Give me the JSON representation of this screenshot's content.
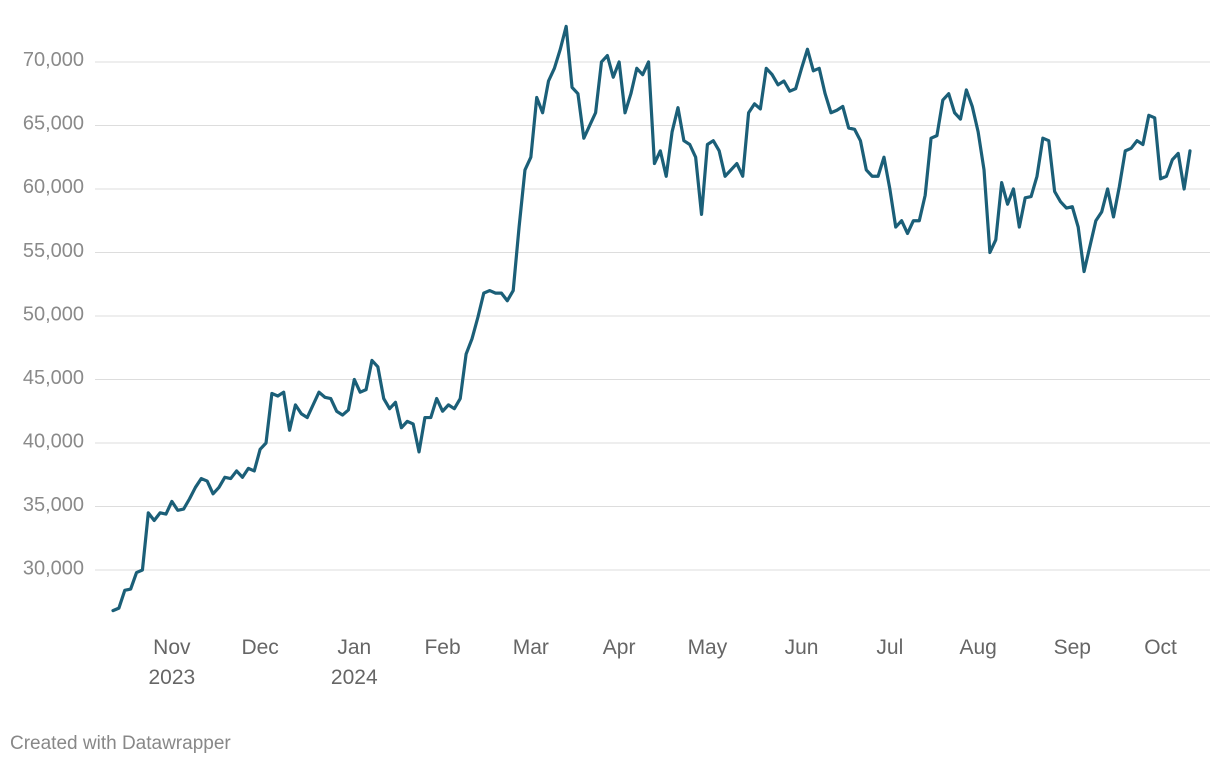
{
  "chart_data": {
    "type": "line",
    "categories": [
      null,
      null,
      null,
      null,
      null,
      null,
      null,
      null,
      null,
      null,
      "Nov\n2023",
      null,
      null,
      null,
      null,
      null,
      null,
      null,
      null,
      null,
      null,
      null,
      null,
      null,
      null,
      "Dec",
      null,
      null,
      null,
      null,
      null,
      null,
      null,
      null,
      null,
      null,
      null,
      null,
      null,
      null,
      null,
      "Jan\n2024",
      null,
      null,
      null,
      null,
      null,
      null,
      null,
      null,
      null,
      null,
      null,
      null,
      null,
      null,
      "Feb",
      null,
      null,
      null,
      null,
      null,
      null,
      null,
      null,
      null,
      null,
      null,
      null,
      null,
      null,
      "Mar",
      null,
      null,
      null,
      null,
      null,
      null,
      null,
      null,
      null,
      null,
      null,
      null,
      null,
      null,
      "Apr",
      null,
      null,
      null,
      null,
      null,
      null,
      null,
      null,
      null,
      null,
      null,
      null,
      null,
      null,
      "May",
      null,
      null,
      null,
      null,
      null,
      null,
      null,
      null,
      null,
      null,
      null,
      null,
      null,
      null,
      null,
      "Jun",
      null,
      null,
      null,
      null,
      null,
      null,
      null,
      null,
      null,
      null,
      null,
      null,
      null,
      null,
      "Jul",
      null,
      null,
      null,
      null,
      null,
      null,
      null,
      null,
      null,
      null,
      null,
      null,
      null,
      null,
      "Aug",
      null,
      null,
      null,
      null,
      null,
      null,
      null,
      null,
      null,
      null,
      null,
      null,
      null,
      null,
      null,
      "Sep",
      null,
      null,
      null,
      null,
      null,
      null,
      null,
      null,
      null,
      null,
      null,
      null,
      null,
      null,
      "Oct",
      null,
      null,
      null,
      null,
      null
    ],
    "series": [
      {
        "color": "#1b5f78",
        "values": [
          26800,
          27000,
          28400,
          28500,
          29800,
          30000,
          34500,
          33900,
          34500,
          34400,
          35400,
          34700,
          34800,
          35600,
          36500,
          37200,
          37000,
          36000,
          36500,
          37300,
          37200,
          37800,
          37300,
          38000,
          37800,
          39500,
          40000,
          43900,
          43700,
          44000,
          41000,
          43000,
          42300,
          42000,
          43000,
          44000,
          43600,
          43500,
          42500,
          42200,
          42600,
          45000,
          44000,
          44200,
          46500,
          46000,
          43500,
          42700,
          43200,
          41200,
          41700,
          41500,
          39300,
          42000,
          42000,
          43500,
          42500,
          43000,
          42700,
          43500,
          47000,
          48200,
          49900,
          51800,
          52000,
          51800,
          51800,
          51200,
          52000,
          57000,
          61500,
          62500,
          67200,
          66000,
          68500,
          69500,
          71000,
          72800,
          68000,
          67500,
          64000,
          65000,
          66000,
          70000,
          70500,
          68800,
          70000,
          66000,
          67500,
          69500,
          69000,
          70000,
          62000,
          63000,
          61000,
          64500,
          66400,
          63800,
          63500,
          62500,
          58000,
          63500,
          63800,
          63000,
          61000,
          61500,
          62000,
          61000,
          66000,
          66700,
          66300,
          69500,
          69000,
          68200,
          68500,
          67700,
          67900,
          69500,
          71000,
          69300,
          69500,
          67500,
          66000,
          66200,
          66500,
          64800,
          64700,
          63800,
          61500,
          61000,
          61000,
          62500,
          60000,
          57000,
          57500,
          56500,
          57500,
          57500,
          59500,
          64000,
          64200,
          67000,
          67500,
          66000,
          65500,
          67800,
          66500,
          64500,
          61500,
          55000,
          56000,
          60500,
          58800,
          60000,
          57000,
          59300,
          59400,
          61000,
          64000,
          63800,
          59800,
          59000,
          58500,
          58600,
          57000,
          53500,
          55500,
          57500,
          58200,
          60000,
          57800,
          60200,
          63000,
          63200,
          63800,
          63500,
          65800,
          65600,
          60800,
          61000,
          62300,
          62800,
          60000,
          63000
        ]
      }
    ],
    "ylim": [
      25000,
      73500
    ],
    "yticks": [
      {
        "value": 30000,
        "label": "30,000"
      },
      {
        "value": 35000,
        "label": "35,000"
      },
      {
        "value": 40000,
        "label": "40,000"
      },
      {
        "value": 45000,
        "label": "45,000"
      },
      {
        "value": 50000,
        "label": "50,000"
      },
      {
        "value": 55000,
        "label": "55,000"
      },
      {
        "value": 60000,
        "label": "60,000"
      },
      {
        "value": 65000,
        "label": "65,000"
      },
      {
        "value": 70000,
        "label": "70,000"
      }
    ],
    "grid": true,
    "footer": "Created with Datawrapper"
  }
}
